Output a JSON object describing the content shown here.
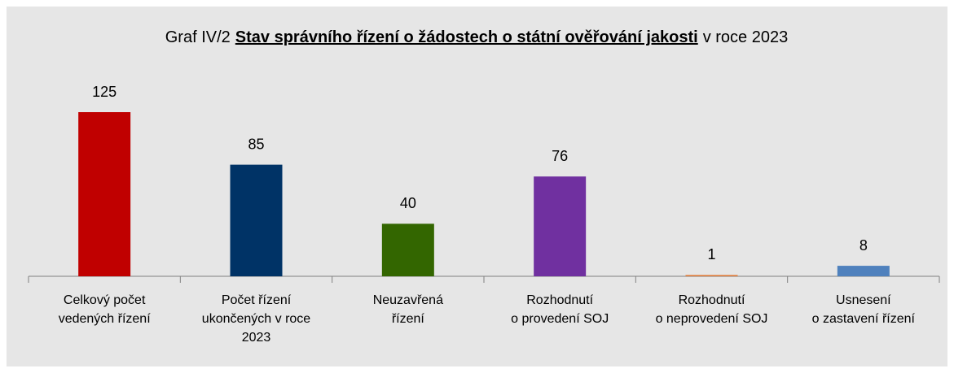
{
  "chart_data": {
    "type": "bar",
    "title_prefix": "Graf IV/2",
    "title": "Stav správního řízení o žádostech o státní ověřování jakosti",
    "title_suffix": "v roce 2023",
    "categories": [
      [
        "Celkový počet",
        "vedených řízení"
      ],
      [
        "Počet řízení",
        "ukončených v roce",
        "2023"
      ],
      [
        "Neuzavřená",
        "řízení"
      ],
      [
        "Rozhodnutí",
        "o provedení SOJ"
      ],
      [
        "Rozhodnutí",
        "o neprovedení SOJ"
      ],
      [
        "Usnesení",
        "o zastavení řízení"
      ]
    ],
    "values": [
      125,
      85,
      40,
      76,
      1,
      8
    ],
    "colors": [
      "#c00000",
      "#003366",
      "#336600",
      "#7030a0",
      "#e07b39",
      "#4f81bd"
    ]
  }
}
